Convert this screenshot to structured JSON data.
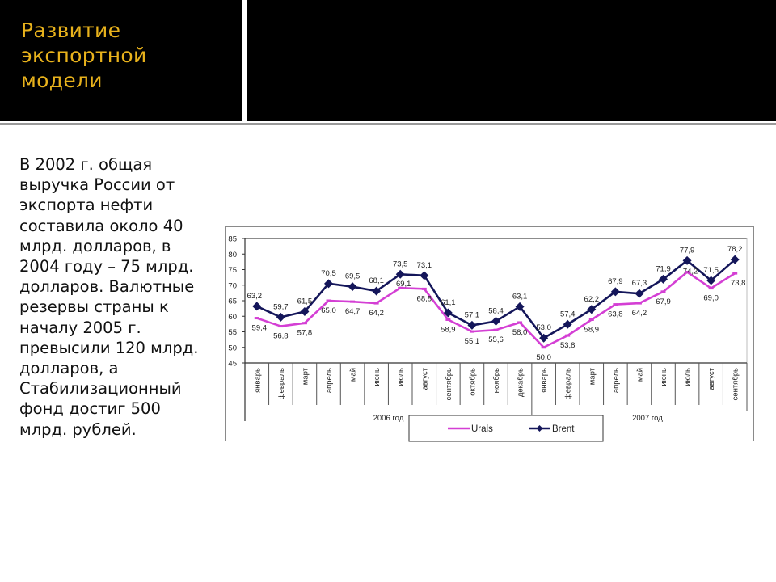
{
  "slide": {
    "title": "Развитие\nэкспортной\nмодели",
    "body_lines": [
      "В 2002 г. общая",
      "выручка России от",
      "экспорта нефти",
      "составила около 40",
      "млрд. долларов, в",
      "2004 году – 75 млрд.",
      "долларов. Валютные",
      "резервы страны к",
      "началу  2005 г.",
      "превысили 120 млрд.",
      "долларов,  а",
      "Стабилизационный",
      "фонд достиг 500",
      "млрд. рублей."
    ],
    "colors": {
      "header_bg": "#000000",
      "title": "#e8b21c",
      "text": "#111111"
    }
  },
  "chart_data": {
    "type": "line",
    "title": "",
    "xlabel": "",
    "ylabel": "",
    "ylim": [
      45,
      85
    ],
    "yticks": [
      45,
      50,
      55,
      60,
      65,
      70,
      75,
      80,
      85
    ],
    "ytick_labels": [
      "45",
      "50",
      "55",
      "60",
      "65",
      "70",
      "75",
      "80",
      "85"
    ],
    "grid": false,
    "legend_position": "bottom",
    "categories": [
      "январь",
      "февраль",
      "март",
      "апрель",
      "май",
      "июнь",
      "июль",
      "август",
      "сентябрь",
      "октябрь",
      "ноябрь",
      "декабрь",
      "январь",
      "февраль",
      "март",
      "апрель",
      "май",
      "июнь",
      "июль",
      "август",
      "сентябрь"
    ],
    "groups": [
      {
        "label": "2006 год",
        "start": 0,
        "end": 11
      },
      {
        "label": "2007 год",
        "start": 12,
        "end": 20
      }
    ],
    "series": [
      {
        "name": "Urals",
        "color": "#d43fd4",
        "marker": "dash",
        "values": [
          59.4,
          56.8,
          57.8,
          65.0,
          64.7,
          64.2,
          69.1,
          68.8,
          58.9,
          55.1,
          55.6,
          58.0,
          50.0,
          53.8,
          58.9,
          63.8,
          64.2,
          67.9,
          74.2,
          69.0,
          73.8
        ],
        "labels": [
          "59,4",
          "56,8",
          "57,8",
          "65,0",
          "64,7",
          "64,2",
          "69,1",
          "68,8",
          "58,9",
          "55,1",
          "55,6",
          "58,0",
          "50,0",
          "53,8",
          "58,9",
          "63,8",
          "64,2",
          "67,9",
          "74,2",
          "69,0",
          "73,8"
        ]
      },
      {
        "name": "Brent",
        "color": "#14165a",
        "marker": "diamond",
        "values": [
          63.2,
          59.7,
          61.5,
          70.5,
          69.5,
          68.1,
          73.5,
          73.1,
          61.1,
          57.1,
          58.4,
          63.1,
          53.0,
          57.4,
          62.2,
          67.9,
          67.3,
          71.9,
          77.9,
          71.5,
          78.2
        ],
        "labels": [
          "63,2",
          "59,7",
          "61,5",
          "70,5",
          "69,5",
          "68,1",
          "73,5",
          "73,1",
          "61,1",
          "57,1",
          "58,4",
          "63,1",
          "53,0",
          "57,4",
          "62,2",
          "67,9",
          "67,3",
          "71,9",
          "77,9",
          "71,5",
          "78,2"
        ]
      }
    ]
  }
}
